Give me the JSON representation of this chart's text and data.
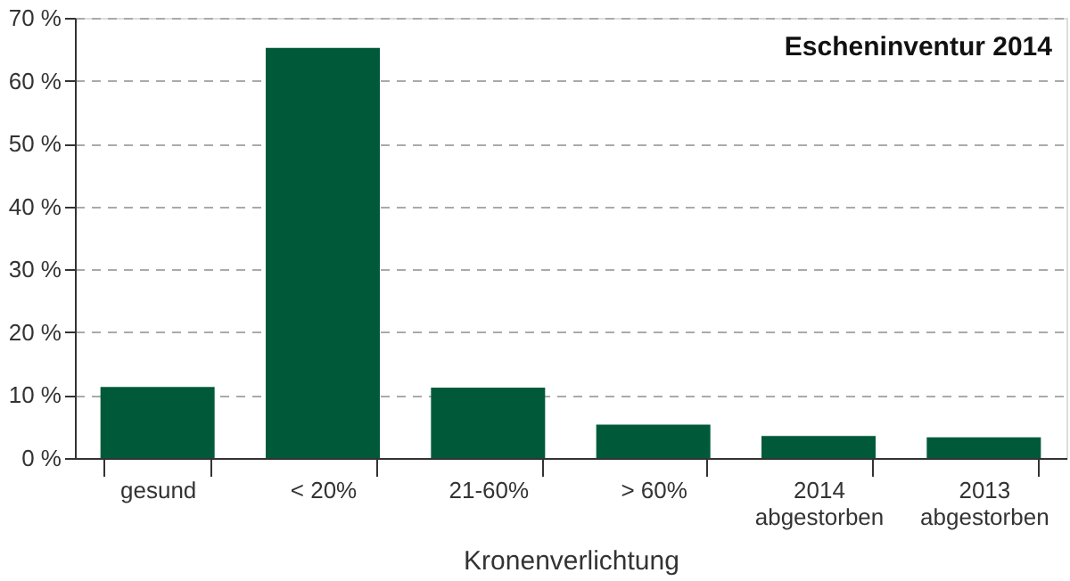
{
  "chart_data": {
    "type": "bar",
    "title": "Escheninventur 2014",
    "xlabel": "Kronenverlichtung",
    "categories": [
      "gesund",
      "< 20%",
      "21-60%",
      "> 60%",
      "2014\nabgestorben",
      "2013\nabgestorben"
    ],
    "values": [
      11.3,
      65.2,
      11.2,
      5.3,
      3.5,
      3.3
    ],
    "color": "#005a3a",
    "ylim": [
      0,
      70
    ],
    "yticks": [
      {
        "value": 0,
        "label": "0 %"
      },
      {
        "value": 10,
        "label": "10 %"
      },
      {
        "value": 20,
        "label": "20 %"
      },
      {
        "value": 30,
        "label": "30 %"
      },
      {
        "value": 40,
        "label": "40 %"
      },
      {
        "value": 50,
        "label": "50 %"
      },
      {
        "value": 60,
        "label": "60 %"
      },
      {
        "value": 70,
        "label": "70 %"
      }
    ],
    "grid": "y"
  }
}
